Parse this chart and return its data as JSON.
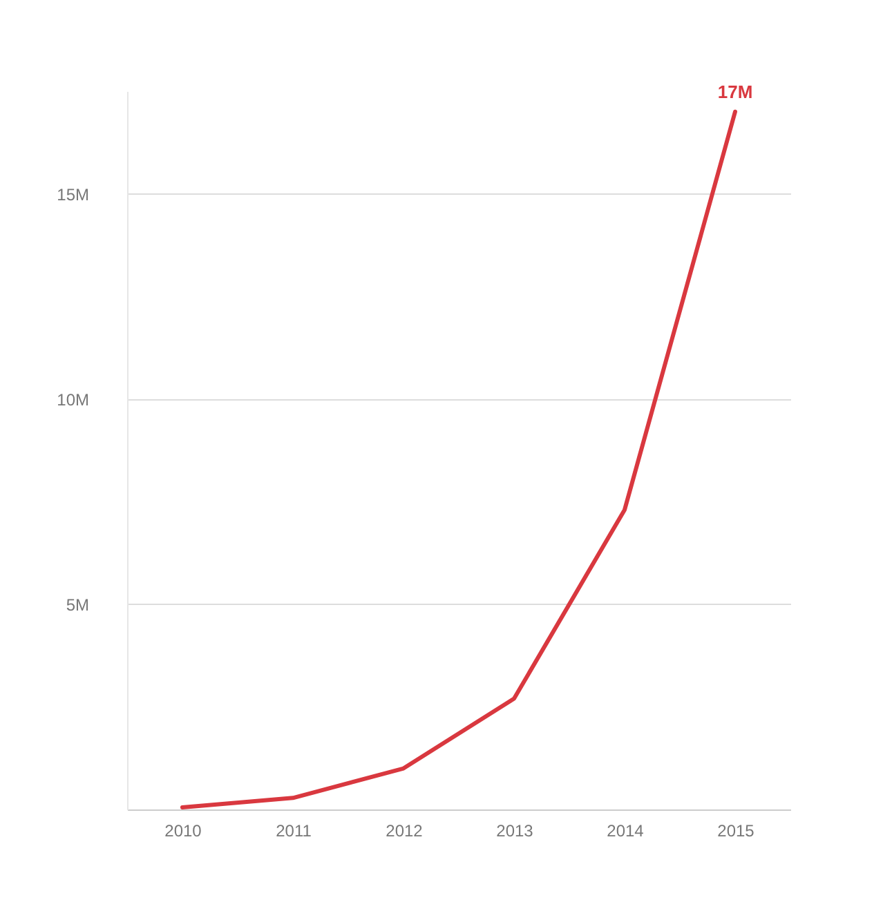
{
  "chart_data": {
    "type": "line",
    "categories": [
      "2010",
      "2011",
      "2012",
      "2013",
      "2014",
      "2015"
    ],
    "series": [
      {
        "color": "#d9383f",
        "values": [
          0.05,
          0.28,
          1.0,
          2.7,
          7.3,
          17
        ]
      }
    ],
    "ylim": [
      0,
      17.5
    ],
    "yticks": [
      {
        "value": 5,
        "label": "5M"
      },
      {
        "value": 10,
        "label": "10M"
      },
      {
        "value": 15,
        "label": "15M"
      }
    ],
    "grid": "y",
    "marker": "none",
    "line_style": "solid",
    "legend": false,
    "annotations": [
      {
        "text": "17M",
        "x": "2015",
        "y": 17
      }
    ]
  }
}
